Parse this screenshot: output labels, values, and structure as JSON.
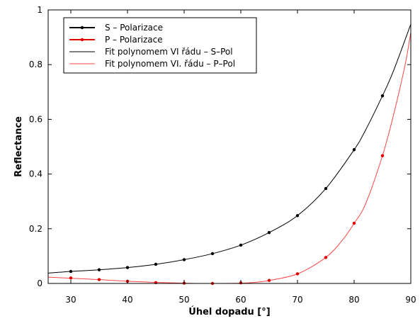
{
  "chart_data": {
    "type": "line",
    "xlabel": "Úhel dopadu [°]",
    "ylabel": "Reflectance",
    "xlim": [
      26,
      90
    ],
    "ylim": [
      0,
      1
    ],
    "xticks": [
      30,
      40,
      50,
      60,
      70,
      80,
      90
    ],
    "yticks": [
      0,
      0.2,
      0.4,
      0.6,
      0.8,
      1
    ],
    "ytick_labels": [
      "0",
      "0.2",
      "0.4",
      "0.6",
      "0.8",
      "1"
    ],
    "grid": false,
    "legend_position": "top-left",
    "series": [
      {
        "name": "S – Polarizace",
        "kind": "points-line",
        "color": "#000000",
        "x": [
          30,
          35,
          40,
          45,
          50,
          55,
          60,
          65,
          70,
          75,
          80,
          85
        ],
        "y": [
          0.044,
          0.05,
          0.058,
          0.07,
          0.087,
          0.109,
          0.14,
          0.186,
          0.248,
          0.347,
          0.489,
          0.686
        ]
      },
      {
        "name": "P – Polarizace",
        "kind": "points-line",
        "color": "#e00000",
        "x": [
          30,
          35,
          40,
          45,
          50,
          55,
          60,
          65,
          70,
          75,
          80,
          85
        ],
        "y": [
          0.02,
          0.014,
          0.008,
          0.003,
          0.001,
          0.0,
          0.002,
          0.011,
          0.035,
          0.095,
          0.22,
          0.467
        ]
      },
      {
        "name": "Fit polynomem VI řádu – S–Pol",
        "kind": "fit",
        "color": "#000000",
        "x": [
          26,
          28,
          30,
          35,
          40,
          45,
          50,
          55,
          60,
          65,
          70,
          75,
          80,
          82,
          85,
          87,
          90
        ],
        "y": [
          0.038,
          0.041,
          0.044,
          0.05,
          0.058,
          0.07,
          0.087,
          0.109,
          0.14,
          0.186,
          0.248,
          0.347,
          0.489,
          0.56,
          0.686,
          0.78,
          0.948
        ]
      },
      {
        "name": "Fit polynomem VI. řádu – P–Pol",
        "kind": "fit",
        "color": "#ff4444",
        "x": [
          26,
          30,
          35,
          40,
          45,
          50,
          52,
          55,
          60,
          63,
          65,
          70,
          75,
          78,
          80,
          82,
          85,
          87,
          89,
          90
        ],
        "y": [
          0.023,
          0.019,
          0.014,
          0.008,
          0.004,
          0.001,
          0.0,
          0.0,
          0.001,
          0.005,
          0.011,
          0.035,
          0.095,
          0.16,
          0.22,
          0.29,
          0.467,
          0.62,
          0.8,
          0.918
        ]
      }
    ]
  }
}
